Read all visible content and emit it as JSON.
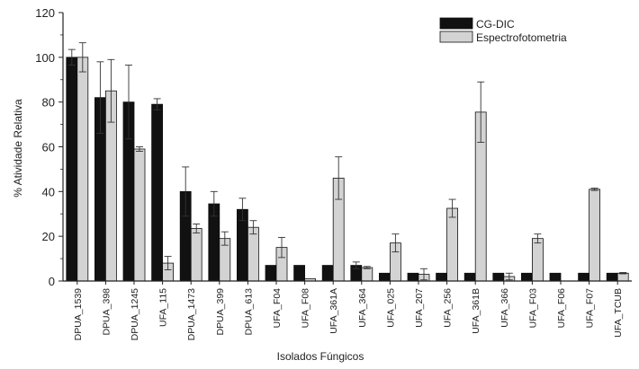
{
  "chart_data": {
    "type": "bar",
    "xlabel": "Isolados Fúngicos",
    "ylabel": "% Atividade Relativa",
    "ylim": [
      0,
      120
    ],
    "yticks": [
      0,
      20,
      40,
      60,
      80,
      100,
      120
    ],
    "grid": false,
    "legend_position": "top-right",
    "categories": [
      "DPUA_1539",
      "DPUA_398",
      "DPUA_1245",
      "UFA_115",
      "DPUA_1473",
      "DPUA_399",
      "DPUA_613",
      "UFA_F04",
      "UFA_F08",
      "UFA_361A",
      "UFA_364",
      "UFA_025",
      "UFA_207",
      "UFA_256",
      "UFA_361B",
      "UFA_366",
      "UFA_F03",
      "UFA_F06",
      "UFA_F07",
      "UFA_TCUB"
    ],
    "series": [
      {
        "name": "CG-DIC",
        "color": "#111111",
        "values": [
          100,
          82,
          80,
          79,
          40,
          34.5,
          32,
          7,
          7,
          7,
          7,
          3.5,
          3.5,
          3.5,
          3.5,
          3.5,
          3.5,
          3.5,
          3.5,
          3.5
        ],
        "errors": [
          3.5,
          16,
          16.5,
          2.5,
          11,
          5.5,
          5,
          0,
          0,
          0,
          1.5,
          0,
          0,
          0,
          0,
          0,
          0,
          0,
          0,
          0
        ]
      },
      {
        "name": "Espectrofotometria",
        "color": "#d3d3d3",
        "values": [
          100,
          85,
          59,
          8,
          23.5,
          19,
          24,
          15,
          1,
          46,
          6,
          17,
          3,
          32.5,
          75.5,
          2,
          19,
          0,
          41,
          3.5
        ],
        "errors": [
          6.5,
          14,
          1,
          3,
          2,
          3,
          3,
          4.5,
          0,
          9.5,
          0.5,
          4,
          2.5,
          4,
          13.5,
          1.5,
          2,
          0,
          0.5,
          0.3
        ]
      }
    ]
  }
}
